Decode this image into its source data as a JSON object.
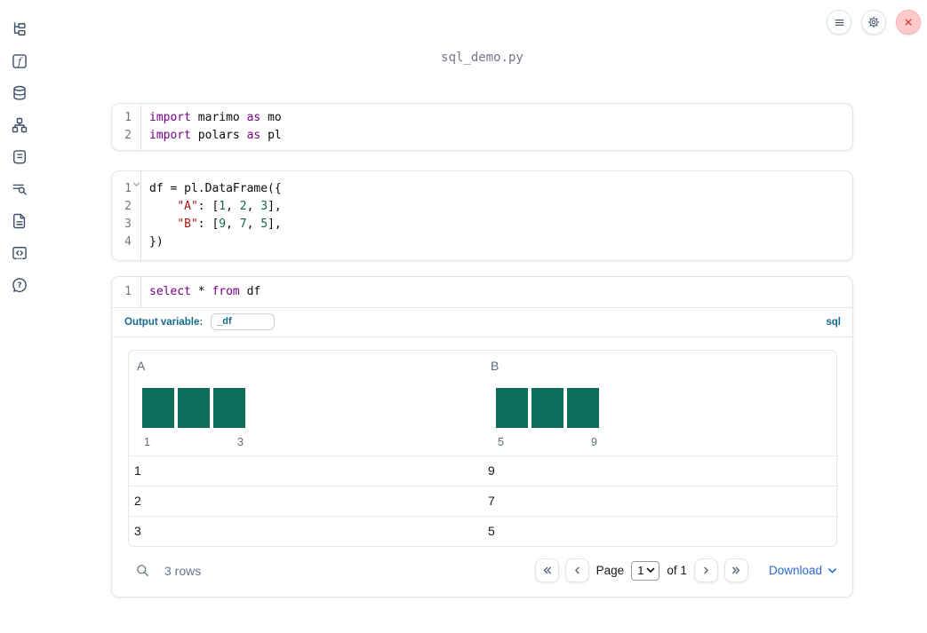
{
  "window": {
    "title": "sql_demo.py"
  },
  "topbar": {
    "buttons": [
      {
        "name": "menu-button",
        "icon": "menu-icon"
      },
      {
        "name": "settings-button",
        "icon": "gear-icon"
      },
      {
        "name": "close-button",
        "icon": "close-icon"
      }
    ]
  },
  "sidebar": {
    "items": [
      {
        "name": "file-explorer-icon"
      },
      {
        "name": "variables-icon"
      },
      {
        "name": "data-sources-icon"
      },
      {
        "name": "dependency-graph-icon"
      },
      {
        "name": "logs-icon"
      },
      {
        "name": "tracebacks-icon"
      },
      {
        "name": "documentation-icon"
      },
      {
        "name": "snippets-icon"
      },
      {
        "name": "help-icon"
      }
    ]
  },
  "cells": [
    {
      "name": "imports-cell",
      "lines": [
        {
          "num": "1",
          "fold": false,
          "tokens": [
            [
              "kw",
              "import"
            ],
            [
              "pl",
              " marimo "
            ],
            [
              "kw",
              "as"
            ],
            [
              "pl",
              " mo"
            ]
          ]
        },
        {
          "num": "2",
          "fold": false,
          "tokens": [
            [
              "kw",
              "import"
            ],
            [
              "pl",
              " polars "
            ],
            [
              "kw",
              "as"
            ],
            [
              "pl",
              " pl"
            ]
          ]
        }
      ]
    },
    {
      "name": "dataframe-cell",
      "lines": [
        {
          "num": "1",
          "fold": true,
          "tokens": [
            [
              "pl",
              "df = pl.DataFrame({"
            ]
          ]
        },
        {
          "num": "2",
          "fold": false,
          "tokens": [
            [
              "pl",
              "    "
            ],
            [
              "str",
              "\"A\""
            ],
            [
              "pl",
              ": ["
            ],
            [
              "num",
              "1"
            ],
            [
              "pl",
              ", "
            ],
            [
              "num",
              "2"
            ],
            [
              "pl",
              ", "
            ],
            [
              "num",
              "3"
            ],
            [
              "pl",
              "],"
            ]
          ]
        },
        {
          "num": "3",
          "fold": false,
          "tokens": [
            [
              "pl",
              "    "
            ],
            [
              "str",
              "\"B\""
            ],
            [
              "pl",
              ": ["
            ],
            [
              "num",
              "9"
            ],
            [
              "pl",
              ", "
            ],
            [
              "num",
              "7"
            ],
            [
              "pl",
              ", "
            ],
            [
              "num",
              "5"
            ],
            [
              "pl",
              "],"
            ]
          ]
        },
        {
          "num": "4",
          "fold": false,
          "tokens": [
            [
              "pl",
              "})"
            ]
          ]
        }
      ]
    },
    {
      "name": "sql-cell",
      "lines": [
        {
          "num": "1",
          "fold": false,
          "tokens": [
            [
              "kw",
              "select"
            ],
            [
              "pl",
              " * "
            ],
            [
              "kw",
              "from"
            ],
            [
              "pl",
              " df"
            ]
          ]
        }
      ]
    }
  ],
  "sql_footer": {
    "label": "Output variable:",
    "variable": "_df",
    "language": "sql"
  },
  "output": {
    "chart_data": [
      {
        "type": "bar",
        "column": "A",
        "values": [
          1,
          1,
          1
        ],
        "min_label": "1",
        "max_label": "3"
      },
      {
        "type": "bar",
        "column": "B",
        "values": [
          1,
          1,
          1
        ],
        "min_label": "5",
        "max_label": "9"
      }
    ],
    "table": {
      "columns": [
        {
          "name": "A",
          "bars": [
            1,
            1,
            1
          ],
          "min_label": "1",
          "max_label": "3"
        },
        {
          "name": "B",
          "bars": [
            1,
            1,
            1
          ],
          "min_label": "5",
          "max_label": "9"
        }
      ],
      "rows": [
        [
          "1",
          "9"
        ],
        [
          "2",
          "7"
        ],
        [
          "3",
          "5"
        ]
      ]
    },
    "footer": {
      "row_count": "3 rows",
      "page_label": "Page",
      "page_value": "1",
      "of_label": "of 1",
      "download_label": "Download"
    }
  },
  "colors": {
    "histogram_bar": "#0e6e5c",
    "keyword": "#770088",
    "string": "#aa1111",
    "number": "#116644",
    "accent_teal_blue": "#17698f",
    "link_blue": "#2a6bd4",
    "close_button_bg": "#fecaca",
    "close_icon_red": "#dc2626"
  }
}
